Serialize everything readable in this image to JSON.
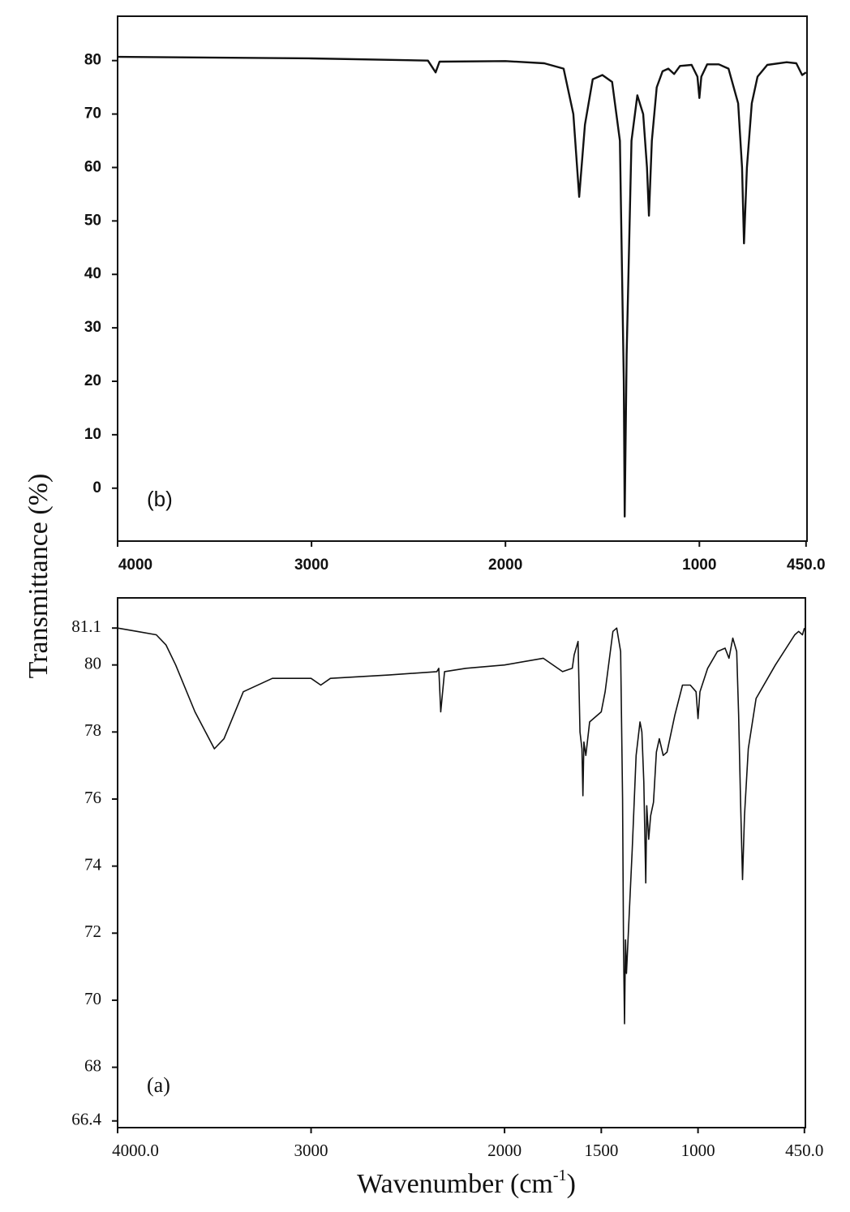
{
  "chart_data": [
    {
      "type": "line",
      "annotation": "(b)",
      "ylabel": "Transmittance (%)",
      "x": [
        4000,
        3000,
        2400,
        2360,
        2340,
        2000,
        1800,
        1700,
        1650,
        1620,
        1590,
        1550,
        1500,
        1450,
        1410,
        1390,
        1385,
        1375,
        1350,
        1320,
        1290,
        1270,
        1260,
        1245,
        1220,
        1190,
        1160,
        1130,
        1100,
        1040,
        1010,
        1000,
        990,
        960,
        900,
        850,
        800,
        780,
        770,
        755,
        730,
        700,
        650,
        550,
        500,
        470,
        450
      ],
      "series": [
        {
          "color": "#111111",
          "values": [
            80.7,
            80.4,
            80.0,
            77.8,
            79.8,
            79.9,
            79.5,
            78.5,
            70,
            54.5,
            68,
            76.5,
            77.3,
            76,
            65,
            20,
            -5.3,
            25,
            65,
            73.5,
            70,
            60,
            51,
            65,
            75,
            78,
            78.5,
            77.5,
            79,
            79.2,
            77,
            73,
            77,
            79.3,
            79.3,
            78.5,
            72,
            60,
            45.8,
            60,
            72,
            77,
            79.2,
            79.7,
            79.5,
            77.3,
            77.8
          ]
        }
      ],
      "xlim": [
        4000,
        445
      ],
      "ylim": [
        -9.9,
        88.3
      ],
      "xticks": [
        4000,
        3000,
        2000,
        1000,
        {
          "value": 450,
          "label": "450.0"
        }
      ],
      "yticks": [
        0,
        10,
        20,
        30,
        40,
        50,
        60,
        70,
        80
      ]
    },
    {
      "type": "line",
      "annotation": "(a)",
      "xlabel": [
        "Wavenumber (cm",
        "-1",
        ")"
      ],
      "x": [
        4000,
        3900,
        3800,
        3750,
        3700,
        3600,
        3500,
        3450,
        3350,
        3200,
        3000,
        2950,
        2900,
        2600,
        2350,
        2340,
        2330,
        2310,
        2200,
        2000,
        1800,
        1700,
        1650,
        1640,
        1620,
        1610,
        1600,
        1595,
        1590,
        1580,
        1560,
        1500,
        1480,
        1440,
        1420,
        1400,
        1390,
        1385,
        1380,
        1375,
        1370,
        1360,
        1340,
        1320,
        1300,
        1290,
        1280,
        1270,
        1265,
        1255,
        1245,
        1230,
        1215,
        1200,
        1180,
        1160,
        1120,
        1080,
        1040,
        1010,
        1000,
        990,
        950,
        900,
        860,
        840,
        820,
        800,
        790,
        780,
        770,
        760,
        740,
        700,
        600,
        500,
        480,
        460,
        450
      ],
      "series": [
        {
          "color": "#111111",
          "values": [
            81.1,
            81.0,
            80.9,
            80.6,
            80.0,
            78.6,
            77.5,
            77.8,
            79.2,
            79.6,
            79.6,
            79.4,
            79.6,
            79.7,
            79.8,
            79.9,
            78.6,
            79.8,
            79.9,
            80.0,
            80.2,
            79.8,
            79.9,
            80.3,
            80.7,
            78,
            77.5,
            76.1,
            77.7,
            77.3,
            78.3,
            78.6,
            79.2,
            81.0,
            81.1,
            80.4,
            76,
            71.5,
            69.3,
            71.8,
            70.8,
            72,
            74.5,
            77.3,
            78.3,
            78,
            76.5,
            73.5,
            75.8,
            74.8,
            75.5,
            75.9,
            77.4,
            77.8,
            77.3,
            77.4,
            78.5,
            79.4,
            79.4,
            79.2,
            78.4,
            79.2,
            79.9,
            80.4,
            80.5,
            80.2,
            80.8,
            80.4,
            78.5,
            75.9,
            73.6,
            75.5,
            77.5,
            79.0,
            80.0,
            80.9,
            81.0,
            80.9,
            81.1
          ]
        }
      ],
      "xlim": [
        4000,
        445
      ],
      "ylim": [
        66.2,
        82.0
      ],
      "xticks": [
        {
          "value": 4000,
          "label": "4000.0"
        },
        3000,
        2000,
        1500,
        1000,
        {
          "value": 450,
          "label": "450.0"
        }
      ],
      "yticks": [
        66.4,
        68,
        70,
        72,
        74,
        76,
        78,
        80,
        81.1
      ]
    }
  ]
}
